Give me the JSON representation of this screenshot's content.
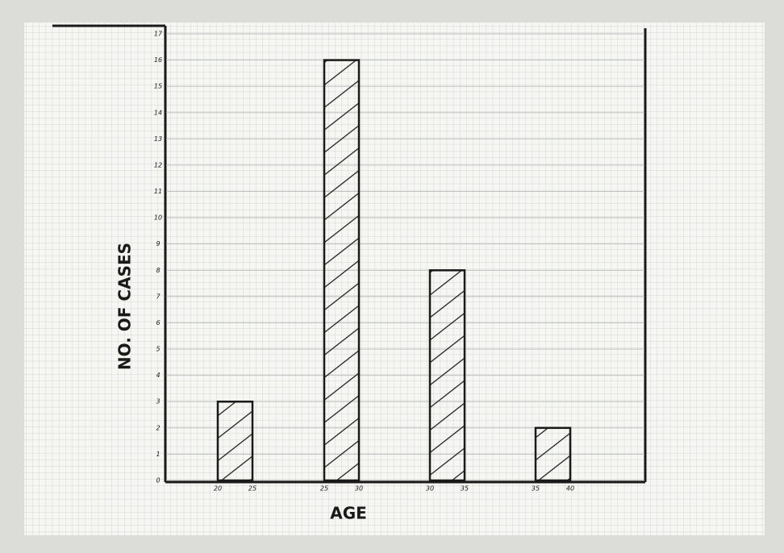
{
  "chart_data": {
    "type": "bar",
    "y_label": "NO. OF CASES",
    "x_label": "AGE",
    "bin_labels": [
      [
        "20",
        "25"
      ],
      [
        "25",
        "30"
      ],
      [
        "30",
        "35"
      ],
      [
        "35",
        "40"
      ]
    ],
    "values": [
      3,
      16,
      8,
      2
    ],
    "color": "#1a1a1a",
    "ylim": [
      0,
      17
    ],
    "yticks": [
      0,
      1,
      2,
      3,
      4,
      5,
      6,
      7,
      8,
      9,
      10,
      11,
      12,
      13,
      14,
      15,
      16,
      17
    ],
    "grid": true
  }
}
